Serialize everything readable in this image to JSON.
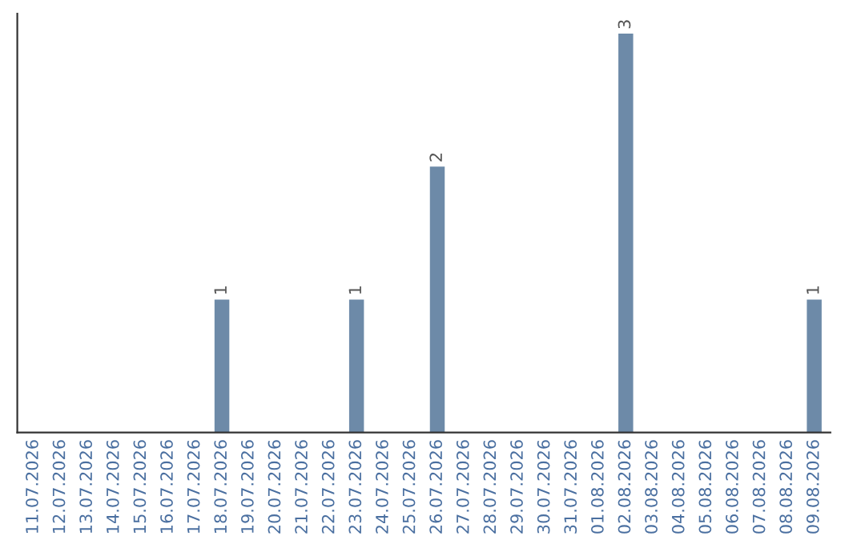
{
  "chart_data": {
    "type": "bar",
    "categories": [
      "11.07.2026",
      "12.07.2026",
      "13.07.2026",
      "14.07.2026",
      "15.07.2026",
      "16.07.2026",
      "17.07.2026",
      "18.07.2026",
      "19.07.2026",
      "20.07.2026",
      "21.07.2026",
      "22.07.2026",
      "23.07.2026",
      "24.07.2026",
      "25.07.2026",
      "26.07.2026",
      "27.07.2026",
      "28.07.2026",
      "29.07.2026",
      "30.07.2026",
      "31.07.2026",
      "01.08.2026",
      "02.08.2026",
      "03.08.2026",
      "04.08.2026",
      "05.08.2026",
      "06.08.2026",
      "07.08.2026",
      "08.08.2026",
      "09.08.2026"
    ],
    "values": [
      0,
      0,
      0,
      0,
      0,
      0,
      0,
      1,
      0,
      0,
      0,
      0,
      1,
      0,
      0,
      2,
      0,
      0,
      0,
      0,
      0,
      0,
      3,
      0,
      0,
      0,
      0,
      0,
      0,
      1
    ],
    "value_labels": [
      null,
      null,
      null,
      null,
      null,
      null,
      null,
      "1",
      null,
      null,
      null,
      null,
      "1",
      null,
      null,
      "2",
      null,
      null,
      null,
      null,
      null,
      null,
      "3",
      null,
      null,
      null,
      null,
      null,
      null,
      "1"
    ],
    "color": "#6d8aa8",
    "ylim": [
      0,
      3.15
    ],
    "tick_labels": "x",
    "grid": false,
    "legend": false
  }
}
